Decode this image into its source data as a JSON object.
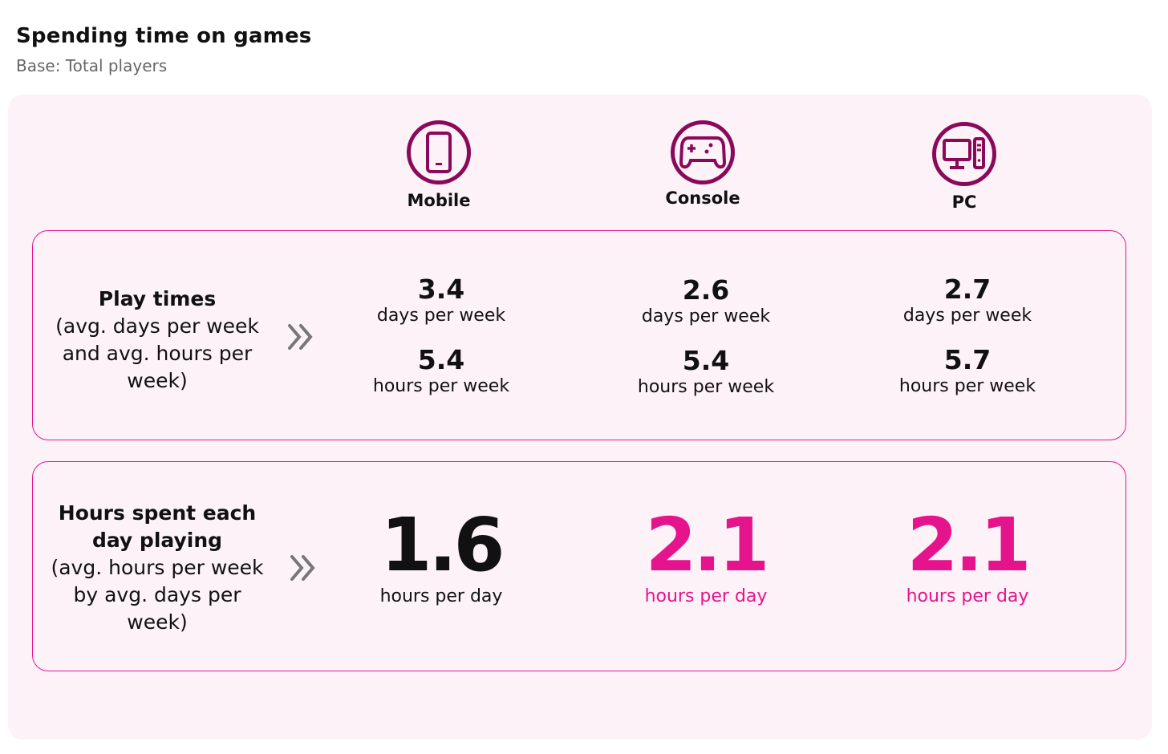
{
  "header": {
    "title": "Spending time on games",
    "subtitle": "Base: Total players"
  },
  "colors": {
    "icon": "#8a0a5a",
    "accent": "#e6148c",
    "panel": "#fdf2f8"
  },
  "columns": [
    {
      "label": "Mobile",
      "icon": "mobile-phone-icon"
    },
    {
      "label": "Console",
      "icon": "gamepad-icon"
    },
    {
      "label": "PC",
      "icon": "desktop-pc-icon"
    }
  ],
  "play_times": {
    "title": "Play times",
    "description": "(avg. days per week and avg. hours per week)",
    "values": [
      {
        "days": "3.4",
        "days_unit": "days per week",
        "hours": "5.4",
        "hours_unit": "hours per week"
      },
      {
        "days": "2.6",
        "days_unit": "days per week",
        "hours": "5.4",
        "hours_unit": "hours per week"
      },
      {
        "days": "2.7",
        "days_unit": "days per week",
        "hours": "5.7",
        "hours_unit": "hours per week"
      }
    ]
  },
  "hours_per_day": {
    "title": "Hours spent each day playing",
    "description": "(avg. hours per week by avg. days per week)",
    "values": [
      {
        "value": "1.6",
        "unit": "hours per day",
        "highlight": false
      },
      {
        "value": "2.1",
        "unit": "hours per day",
        "highlight": true
      },
      {
        "value": "2.1",
        "unit": "hours per day",
        "highlight": true
      }
    ]
  }
}
